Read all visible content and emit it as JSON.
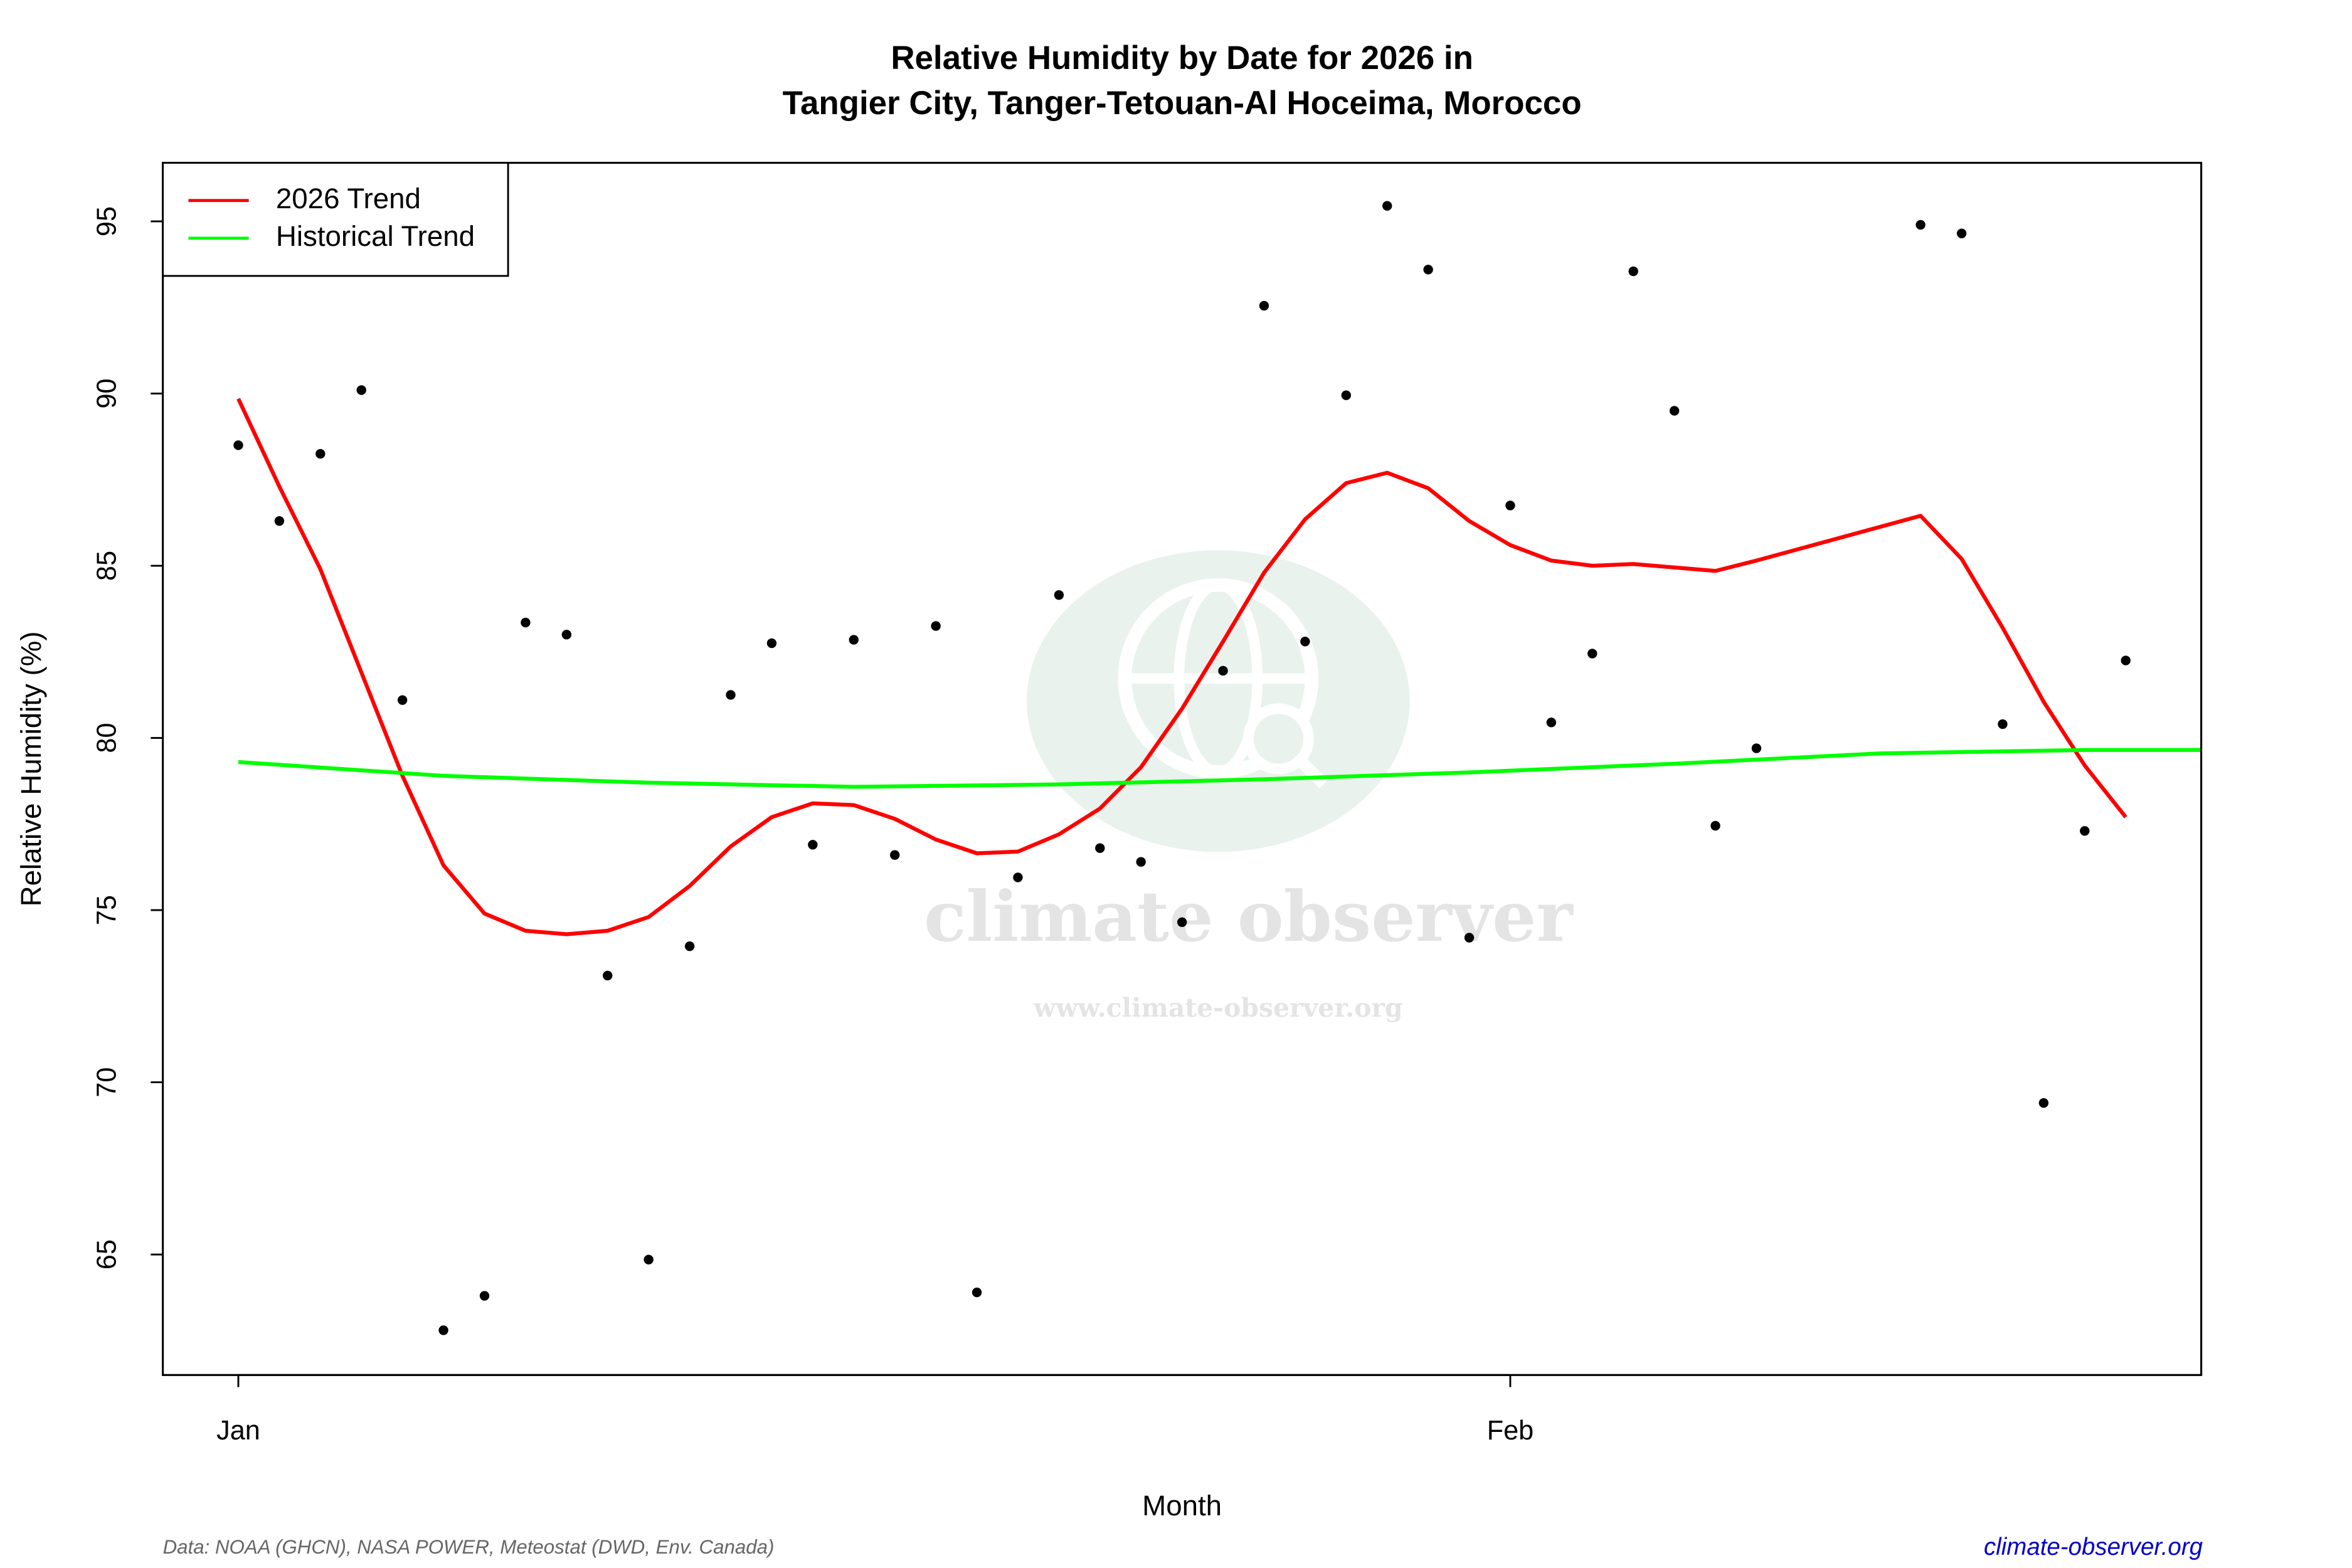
{
  "chart_data": {
    "type": "line",
    "title": [
      "Relative Humidity by Date for 2026 in",
      "Tangier City, Tanger-Tetouan-Al Hoceima, Morocco"
    ],
    "x_label": "Month",
    "y_label": "Relative Humidity (%)",
    "xlim": [
      -0.84,
      48.84
    ],
    "ylim": [
      61.5,
      96.7
    ],
    "xticks": [
      {
        "value": 1,
        "label": "Jan"
      },
      {
        "value": 32,
        "label": "Feb"
      }
    ],
    "yticks": [
      65,
      70,
      75,
      80,
      85,
      90,
      95
    ],
    "legend": "top-left",
    "series": [
      {
        "type": "scatter",
        "color": "#000000",
        "x": [
          1,
          2,
          3,
          4,
          5,
          6,
          7,
          8,
          9,
          10,
          11,
          12,
          13,
          14,
          15,
          16,
          17,
          18,
          19,
          20,
          21,
          22,
          23,
          24,
          25,
          26,
          27,
          28,
          29,
          30,
          31,
          32,
          33,
          34,
          35,
          36,
          37,
          38,
          42,
          43,
          44,
          45,
          46,
          47
        ],
        "values": [
          88.5,
          86.3,
          88.25,
          90.1,
          81.1,
          62.8,
          63.8,
          83.35,
          83.0,
          73.1,
          64.85,
          73.95,
          81.25,
          82.75,
          76.9,
          82.85,
          76.6,
          83.25,
          63.9,
          75.95,
          84.15,
          76.8,
          76.4,
          74.65,
          81.95,
          92.55,
          82.8,
          89.95,
          95.45,
          93.6,
          74.2,
          86.75,
          80.45,
          82.45,
          93.55,
          89.5,
          77.45,
          79.7,
          94.9,
          94.65,
          80.4,
          69.4,
          77.3,
          82.25
        ]
      },
      {
        "type": "line",
        "name": "2026 Trend",
        "color": "#ff0000",
        "x": [
          1,
          2,
          3,
          4,
          5,
          6,
          7,
          8,
          9,
          10,
          11,
          12,
          13,
          14,
          15,
          16,
          17,
          18,
          19,
          20,
          21,
          22,
          23,
          24,
          25,
          26,
          27,
          28,
          29,
          30,
          31,
          32,
          33,
          34,
          35,
          36,
          37,
          38,
          42,
          43,
          44,
          45,
          46,
          47
        ],
        "values": [
          89.85,
          87.3,
          84.9,
          81.9,
          78.9,
          76.3,
          74.9,
          74.4,
          74.3,
          74.4,
          74.8,
          75.7,
          76.85,
          77.7,
          78.1,
          78.05,
          77.65,
          77.05,
          76.65,
          76.7,
          77.2,
          77.95,
          79.15,
          80.85,
          82.8,
          84.8,
          86.35,
          87.4,
          87.7,
          87.25,
          86.3,
          85.6,
          85.15,
          85.0,
          85.05,
          84.95,
          84.85,
          85.15,
          86.45,
          85.2,
          83.2,
          81.05,
          79.2,
          77.7
        ]
      },
      {
        "type": "line",
        "name": "Historical Trend",
        "color": "#00ff00",
        "x": [
          1,
          6,
          11,
          16,
          21,
          26,
          31,
          36,
          41,
          46,
          49
        ],
        "values": [
          79.3,
          78.9,
          78.7,
          78.58,
          78.65,
          78.8,
          79.0,
          79.25,
          79.55,
          79.65,
          79.65
        ]
      }
    ],
    "watermark": {
      "name": "climate observer",
      "url": "www.climate-observer.org"
    },
    "source": "Data: NOAA (GHCN), NASA POWER, Meteostat (DWD, Env. Canada)",
    "site": "climate-observer.org"
  }
}
